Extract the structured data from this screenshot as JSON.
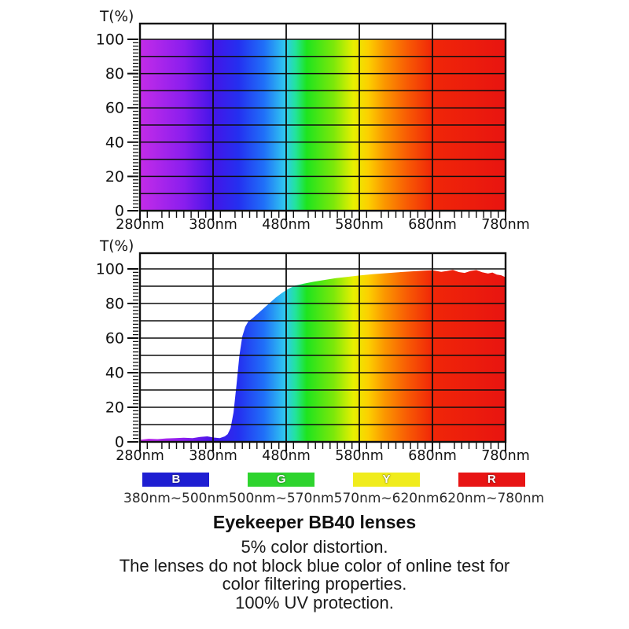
{
  "chart_data": [
    {
      "type": "area",
      "name": "full-visible-spectrum-reference",
      "title": "",
      "ylabel": "T(%)",
      "x_tick_labels": [
        "280nm",
        "380nm",
        "480nm",
        "580nm",
        "680nm",
        "780nm"
      ],
      "x_tick_values_nm": [
        280,
        380,
        480,
        580,
        680,
        780
      ],
      "y_tick_labels": [
        "0",
        "20",
        "40",
        "60",
        "80",
        "100"
      ],
      "y_tick_values": [
        0,
        20,
        40,
        60,
        80,
        100
      ],
      "xlim_nm": [
        280,
        780
      ],
      "ylim": [
        0,
        100
      ],
      "grid": true,
      "y_gridline_step": 10,
      "vertical_gridlines_nm": [
        380,
        480,
        580,
        680
      ],
      "y_minor_tick_step": 2,
      "x_minor_tick_step_nm": 10,
      "series": [
        {
          "name": "transmittance",
          "points": [
            [
              280,
              100
            ],
            [
              780,
              100
            ]
          ]
        }
      ]
    },
    {
      "type": "area",
      "name": "bb40-lens-transmittance",
      "title": "",
      "ylabel": "T(%)",
      "x_tick_labels": [
        "280nm",
        "380nm",
        "480nm",
        "580nm",
        "680nm",
        "780nm"
      ],
      "x_tick_values_nm": [
        280,
        380,
        480,
        580,
        680,
        780
      ],
      "y_tick_labels": [
        "0",
        "20",
        "40",
        "60",
        "80",
        "100"
      ],
      "y_tick_values": [
        0,
        20,
        40,
        60,
        80,
        100
      ],
      "xlim_nm": [
        280,
        780
      ],
      "ylim": [
        0,
        100
      ],
      "grid": true,
      "y_gridline_step": 10,
      "vertical_gridlines_nm": [
        380,
        480,
        580,
        680
      ],
      "y_minor_tick_step": 2,
      "x_minor_tick_step_nm": 10,
      "series": [
        {
          "name": "transmittance",
          "points": [
            [
              280,
              1.2
            ],
            [
              292,
              1.8
            ],
            [
              304,
              1.6
            ],
            [
              316,
              2.0
            ],
            [
              328,
              2.2
            ],
            [
              340,
              2.4
            ],
            [
              352,
              2.2
            ],
            [
              362,
              2.8
            ],
            [
              372,
              3.2
            ],
            [
              381,
              2.5
            ],
            [
              389,
              2.2
            ],
            [
              396,
              3.2
            ],
            [
              400,
              4.5
            ],
            [
              404,
              8
            ],
            [
              408,
              17
            ],
            [
              412,
              33
            ],
            [
              416,
              50
            ],
            [
              420,
              61
            ],
            [
              424,
              66.5
            ],
            [
              428,
              69.5
            ],
            [
              434,
              71.5
            ],
            [
              442,
              74.5
            ],
            [
              450,
              77.5
            ],
            [
              458,
              80.5
            ],
            [
              466,
              83.5
            ],
            [
              474,
              86
            ],
            [
              482,
              88.3
            ],
            [
              492,
              90.3
            ],
            [
              504,
              91.5
            ],
            [
              518,
              92.6
            ],
            [
              532,
              93.6
            ],
            [
              548,
              94.7
            ],
            [
              564,
              95.4
            ],
            [
              580,
              96.2
            ],
            [
              598,
              96.9
            ],
            [
              616,
              97.5
            ],
            [
              634,
              98.1
            ],
            [
              652,
              98.6
            ],
            [
              668,
              99
            ],
            [
              680,
              99.2
            ],
            [
              692,
              98.3
            ],
            [
              700,
              98.8
            ],
            [
              708,
              99.4
            ],
            [
              716,
              98.2
            ],
            [
              724,
              97.7
            ],
            [
              732,
              98.8
            ],
            [
              740,
              99.3
            ],
            [
              748,
              98.1
            ],
            [
              756,
              97.3
            ],
            [
              762,
              97.9
            ],
            [
              768,
              96.7
            ],
            [
              774,
              96.3
            ],
            [
              780,
              95.2
            ]
          ]
        }
      ]
    }
  ],
  "spectrum_gradient": [
    {
      "nm": 280,
      "color": "#c42ce8"
    },
    {
      "nm": 340,
      "color": "#8a1eee"
    },
    {
      "nm": 380,
      "color": "#4414e8"
    },
    {
      "nm": 415,
      "color": "#2430f0"
    },
    {
      "nm": 450,
      "color": "#2070f8"
    },
    {
      "nm": 478,
      "color": "#30c8f0"
    },
    {
      "nm": 493,
      "color": "#22e49a"
    },
    {
      "nm": 508,
      "color": "#1ee41e"
    },
    {
      "nm": 545,
      "color": "#7ce80a"
    },
    {
      "nm": 572,
      "color": "#e8f000"
    },
    {
      "nm": 592,
      "color": "#fcd000"
    },
    {
      "nm": 615,
      "color": "#fb9600"
    },
    {
      "nm": 645,
      "color": "#f85c04"
    },
    {
      "nm": 680,
      "color": "#f02608"
    },
    {
      "nm": 780,
      "color": "#e81410"
    }
  ],
  "legend": {
    "items": [
      {
        "letter": "B",
        "color": "#1e1ed2",
        "range": "380nm~500nm"
      },
      {
        "letter": "G",
        "color": "#2ed42e",
        "range": "500nm~570nm"
      },
      {
        "letter": "Y",
        "color": "#f0ec1c",
        "range": "570nm~620nm"
      },
      {
        "letter": "R",
        "color": "#e81414",
        "range": "620nm~780nm"
      }
    ]
  },
  "caption": {
    "title": "Eyekeeper BB40 lenses",
    "lines": [
      "5% color distortion.",
      "The lenses do not block blue color of online test for",
      "color filtering properties.",
      "100% UV protection."
    ]
  }
}
